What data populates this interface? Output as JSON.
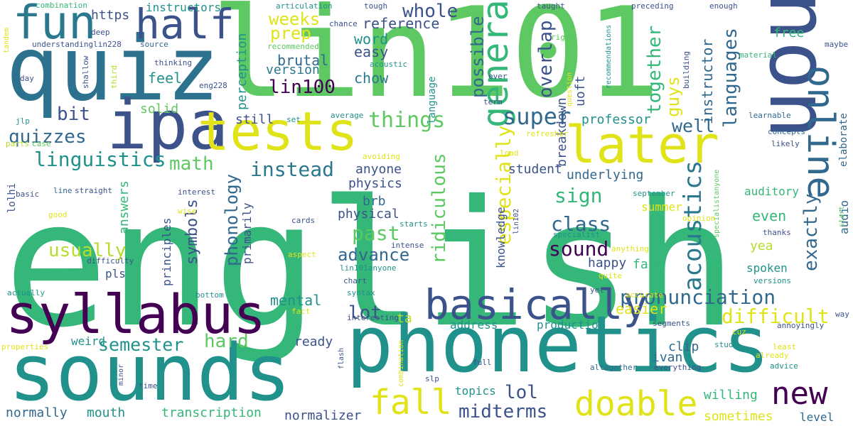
{
  "palette": {
    "background": "#ffffff",
    "deep_purple": "#440154",
    "indigo": "#3b528b",
    "slate_blue": "#31688e",
    "teal": "#21918c",
    "sea_green": "#35b779",
    "green": "#5ec962",
    "lime": "#b5de2b",
    "yellow": "#dfe318"
  },
  "words": [
    {
      "text": "english",
      "color": "#35b779"
    },
    {
      "text": "phonetics",
      "color": "#21918c"
    },
    {
      "text": "lin101",
      "color": "#5ec962"
    },
    {
      "text": "non",
      "color": "#3b528b"
    },
    {
      "text": "quiz",
      "color": "#2c728e"
    },
    {
      "text": "sounds",
      "color": "#21918c"
    },
    {
      "text": "syllabus",
      "color": "#440154"
    },
    {
      "text": "ipa",
      "color": "#3b528b"
    },
    {
      "text": "tests",
      "color": "#dfe318"
    },
    {
      "text": "fun",
      "color": "#2a788e"
    },
    {
      "text": "half",
      "color": "#3b528b"
    },
    {
      "text": "later",
      "color": "#dfe318"
    },
    {
      "text": "online",
      "color": "#31688e"
    },
    {
      "text": "basically",
      "color": "#3b528b"
    },
    {
      "text": "general",
      "color": "#35b779"
    },
    {
      "text": "doable",
      "color": "#dfe318"
    },
    {
      "text": "fall",
      "color": "#dfe318"
    },
    {
      "text": "new",
      "color": "#440154"
    },
    {
      "text": "things",
      "color": "#5ec962"
    },
    {
      "text": "super",
      "color": "#31688e"
    },
    {
      "text": "linguistics",
      "color": "#21918c"
    },
    {
      "text": "math",
      "color": "#5ec962"
    },
    {
      "text": "instead",
      "color": "#2a788e"
    },
    {
      "text": "pronunciation",
      "color": "#31688e"
    },
    {
      "text": "acoustics",
      "color": "#2a788e"
    },
    {
      "text": "difficult",
      "color": "#dfe318"
    },
    {
      "text": "midterms",
      "color": "#3b528b"
    },
    {
      "text": "languages",
      "color": "#31688e"
    },
    {
      "text": "semester",
      "color": "#21918c"
    },
    {
      "text": "well",
      "color": "#31688e"
    },
    {
      "text": "together",
      "color": "#35b779"
    },
    {
      "text": "guys",
      "color": "#dfe318"
    },
    {
      "text": "whole",
      "color": "#3b528b"
    },
    {
      "text": "possible",
      "color": "#31688e"
    },
    {
      "text": "overlap",
      "color": "#3b528b"
    },
    {
      "text": "prep",
      "color": "#dfe318"
    },
    {
      "text": "lin100",
      "color": "#440154"
    },
    {
      "text": "brutal",
      "color": "#31688e"
    },
    {
      "text": "weeks",
      "color": "#dfe318"
    },
    {
      "text": "reference",
      "color": "#3b528b"
    },
    {
      "text": "word",
      "color": "#21918c"
    },
    {
      "text": "easy",
      "color": "#3b528b"
    },
    {
      "text": "free",
      "color": "#35b779"
    },
    {
      "text": "instructor",
      "color": "#31688e"
    },
    {
      "text": "uoft",
      "color": "#3b528b"
    },
    {
      "text": "breakdown",
      "color": "#3b528b"
    },
    {
      "text": "quizzes",
      "color": "#31688e"
    },
    {
      "text": "bit",
      "color": "#3b528b"
    },
    {
      "text": "feel",
      "color": "#21918c"
    },
    {
      "text": "solid",
      "color": "#5ec962"
    },
    {
      "text": "chow",
      "color": "#2a788e"
    },
    {
      "text": "version",
      "color": "#2a788e"
    },
    {
      "text": "perception",
      "color": "#21918c"
    },
    {
      "text": "still",
      "color": "#3b528b"
    },
    {
      "text": "professor",
      "color": "#21918c"
    },
    {
      "text": "class",
      "color": "#31688e"
    },
    {
      "text": "sound",
      "color": "#440154"
    },
    {
      "text": "sign",
      "color": "#35b779"
    },
    {
      "text": "especially",
      "color": "#dfe318"
    },
    {
      "text": "ridiculous",
      "color": "#5ec962"
    },
    {
      "text": "past",
      "color": "#5ec962"
    },
    {
      "text": "advance",
      "color": "#31688e"
    },
    {
      "text": "anyone",
      "color": "#3b528b"
    },
    {
      "text": "student",
      "color": "#3b528b"
    },
    {
      "text": "underlying",
      "color": "#31688e"
    },
    {
      "text": "physics",
      "color": "#3b528b"
    },
    {
      "text": "brb",
      "color": "#31688e"
    },
    {
      "text": "physical",
      "color": "#3b528b"
    },
    {
      "text": "usually",
      "color": "#b5de2b"
    },
    {
      "text": "phonology",
      "color": "#31688e"
    },
    {
      "text": "symbols",
      "color": "#3b528b"
    },
    {
      "text": "happy",
      "color": "#3b528b"
    },
    {
      "text": "exactly",
      "color": "#31688e"
    },
    {
      "text": "even",
      "color": "#35b779"
    },
    {
      "text": "summer",
      "color": "#dfe318"
    },
    {
      "text": "yea",
      "color": "#b5de2b"
    },
    {
      "text": "far",
      "color": "#35b779"
    },
    {
      "text": "spoken",
      "color": "#21918c"
    },
    {
      "text": "lot",
      "color": "#3b528b"
    },
    {
      "text": "lol",
      "color": "#3b528b"
    },
    {
      "text": "mental",
      "color": "#21918c"
    },
    {
      "text": "easier",
      "color": "#dfe318"
    },
    {
      "text": "ready",
      "color": "#3b528b"
    },
    {
      "text": "hard",
      "color": "#5ec962"
    },
    {
      "text": "weird",
      "color": "#21918c"
    },
    {
      "text": "mouth",
      "color": "#21918c"
    },
    {
      "text": "normally",
      "color": "#31688e"
    },
    {
      "text": "transcription",
      "color": "#35b779"
    },
    {
      "text": "normalizer",
      "color": "#3b528b"
    },
    {
      "text": "topics",
      "color": "#21918c"
    },
    {
      "text": "willing",
      "color": "#35b779"
    },
    {
      "text": "sometimes",
      "color": "#dfe318"
    },
    {
      "text": "level",
      "color": "#31688e"
    },
    {
      "text": "address",
      "color": "#21918c"
    },
    {
      "text": "production",
      "color": "#21918c"
    },
    {
      "text": "clip",
      "color": "#31688e"
    },
    {
      "text": "ivan",
      "color": "#31688e"
    },
    {
      "text": "audio",
      "color": "#31688e"
    },
    {
      "text": "auditory",
      "color": "#35b779"
    },
    {
      "text": "answers",
      "color": "#35b779"
    },
    {
      "text": "principles",
      "color": "#3b528b"
    },
    {
      "text": "primarily",
      "color": "#3b528b"
    },
    {
      "text": "pls",
      "color": "#3b528b"
    },
    {
      "text": "https",
      "color": "#3b528b"
    },
    {
      "text": "instructors",
      "color": "#21918c"
    },
    {
      "text": "knowledge",
      "color": "#3b528b"
    },
    {
      "text": "ta",
      "color": "#b5de2b"
    },
    {
      "text": "language",
      "color": "#21918c"
    },
    {
      "text": "elaborate",
      "color": "#31688e"
    },
    {
      "text": "combination",
      "color": "#35b779"
    },
    {
      "text": "articulation",
      "color": "#21918c"
    },
    {
      "text": "understandinglin228",
      "color": "#3b528b"
    },
    {
      "text": "deep",
      "color": "#3b528b"
    },
    {
      "text": "source",
      "color": "#31688e"
    },
    {
      "text": "chance",
      "color": "#3b528b"
    },
    {
      "text": "recommended",
      "color": "#5ec962"
    },
    {
      "text": "acoustic",
      "color": "#21918c"
    },
    {
      "text": "taught",
      "color": "#3b528b"
    },
    {
      "text": "right",
      "color": "#5ec962"
    },
    {
      "text": "preceding",
      "color": "#3b528b"
    },
    {
      "text": "enough",
      "color": "#3b528b"
    },
    {
      "text": "maybe",
      "color": "#3b528b"
    },
    {
      "text": "material",
      "color": "#35b779"
    },
    {
      "text": "recommendations",
      "color": "#21918c"
    },
    {
      "text": "building",
      "color": "#3b528b"
    },
    {
      "text": "tandem",
      "color": "#dfe318"
    },
    {
      "text": "thinking",
      "color": "#3b528b"
    },
    {
      "text": "third",
      "color": "#b5de2b"
    },
    {
      "text": "shallow",
      "color": "#3b528b"
    },
    {
      "text": "eng228",
      "color": "#3b528b"
    },
    {
      "text": "day",
      "color": "#3b528b"
    },
    {
      "text": "ever",
      "color": "#3b528b"
    },
    {
      "text": "term",
      "color": "#3b528b"
    },
    {
      "text": "tough",
      "color": "#3b528b"
    },
    {
      "text": "jlp",
      "color": "#21918c"
    },
    {
      "text": "parts",
      "color": "#b5de2b"
    },
    {
      "text": "case",
      "color": "#5ec962"
    },
    {
      "text": "set",
      "color": "#21918c"
    },
    {
      "text": "average",
      "color": "#21918c"
    },
    {
      "text": "refresher",
      "color": "#dfe318"
    },
    {
      "text": "question",
      "color": "#dfe318"
    },
    {
      "text": "concepts",
      "color": "#31688e"
    },
    {
      "text": "likely",
      "color": "#3b528b"
    },
    {
      "text": "learnable",
      "color": "#31688e"
    },
    {
      "text": "load",
      "color": "#dfe318"
    },
    {
      "text": "avoiding",
      "color": "#dfe318"
    },
    {
      "text": "basic",
      "color": "#3b528b"
    },
    {
      "text": "line",
      "color": "#31688e"
    },
    {
      "text": "straight",
      "color": "#3b528b"
    },
    {
      "text": "interest",
      "color": "#3b528b"
    },
    {
      "text": "lolhi",
      "color": "#3b528b"
    },
    {
      "text": "september",
      "color": "#21918c"
    },
    {
      "text": "specialistanyone",
      "color": "#5ec962"
    },
    {
      "text": "start",
      "color": "#5ec962"
    },
    {
      "text": "good",
      "color": "#dfe318"
    },
    {
      "text": "wise",
      "color": "#dfe318"
    },
    {
      "text": "cards",
      "color": "#3b528b"
    },
    {
      "text": "starts",
      "color": "#21918c"
    },
    {
      "text": "lin102",
      "color": "#3b528b"
    },
    {
      "text": "specialist",
      "color": "#21918c"
    },
    {
      "text": "opinion",
      "color": "#dfe318"
    },
    {
      "text": "thanks",
      "color": "#3b528b"
    },
    {
      "text": "intense",
      "color": "#3b528b"
    },
    {
      "text": "aspect",
      "color": "#dfe318"
    },
    {
      "text": "difficulty",
      "color": "#3b528b"
    },
    {
      "text": "lin101anyone",
      "color": "#21918c"
    },
    {
      "text": "anything",
      "color": "#dfe318"
    },
    {
      "text": "quite",
      "color": "#dfe318"
    },
    {
      "text": "chart",
      "color": "#3b528b"
    },
    {
      "text": "actually",
      "color": "#21918c"
    },
    {
      "text": "bottom",
      "color": "#21918c"
    },
    {
      "text": "syntax",
      "color": "#21918c"
    },
    {
      "text": "yet",
      "color": "#3b528b"
    },
    {
      "text": "accurate",
      "color": "#dfe318"
    },
    {
      "text": "versions",
      "color": "#21918c"
    },
    {
      "text": "fact",
      "color": "#dfe318"
    },
    {
      "text": "interesting",
      "color": "#3b528b"
    },
    {
      "text": "segments",
      "color": "#3b528b"
    },
    {
      "text": "way",
      "color": "#3b528b"
    },
    {
      "text": "cuz",
      "color": "#dfe318"
    },
    {
      "text": "annoyingly",
      "color": "#3b528b"
    },
    {
      "text": "study",
      "color": "#21918c"
    },
    {
      "text": "least",
      "color": "#dfe318"
    },
    {
      "text": "already",
      "color": "#dfe318"
    },
    {
      "text": "properties",
      "color": "#dfe318"
    },
    {
      "text": "minor",
      "color": "#3b528b"
    },
    {
      "text": "flash",
      "color": "#3b528b"
    },
    {
      "text": "combination",
      "color": "#dfe318"
    },
    {
      "text": "full",
      "color": "#3b528b"
    },
    {
      "text": "altogether",
      "color": "#31688e"
    },
    {
      "text": "everything",
      "color": "#3b528b"
    },
    {
      "text": "advice",
      "color": "#21918c"
    },
    {
      "text": "time",
      "color": "#3b528b"
    },
    {
      "text": "slp",
      "color": "#3b528b"
    }
  ]
}
